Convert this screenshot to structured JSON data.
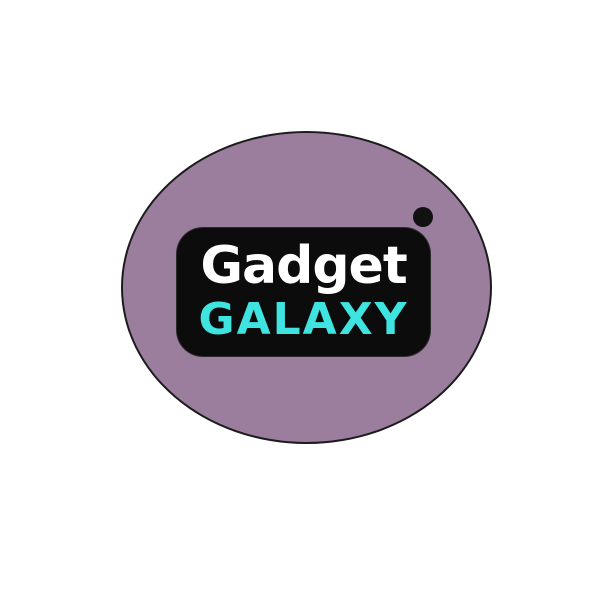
{
  "logo": {
    "line1": "Gadget",
    "line2": "GALAXY",
    "colors": {
      "circle": "#9b7e9e",
      "plate": "#0c0c0c",
      "line1": "#ffffff",
      "line2": "#3fe4e0",
      "dot": "#111111"
    }
  }
}
